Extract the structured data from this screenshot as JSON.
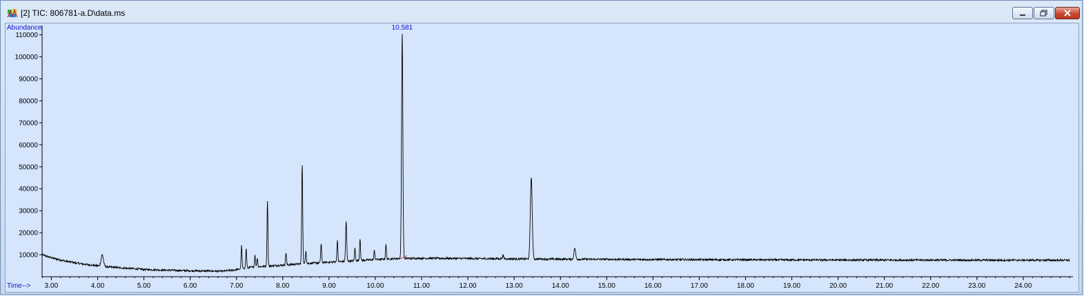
{
  "window": {
    "title": "[2] TIC: 806781-a.D\\data.ms"
  },
  "colors": {
    "axis_label": "#1010d0",
    "trace": "#000000",
    "peak_label": "#1010d0",
    "baseline_mark": "#d03030",
    "plot_background": "#d5e5fb"
  },
  "chart_data": {
    "type": "line",
    "ylabel": "Abundance",
    "xlabel": "Time-->",
    "xlim": [
      2.8,
      25.0
    ],
    "ylim": [
      0,
      113000
    ],
    "x_ticks": [
      "3.00",
      "4.00",
      "5.00",
      "6.00",
      "7.00",
      "8.00",
      "9.00",
      "10.00",
      "11.00",
      "12.00",
      "13.00",
      "14.00",
      "15.00",
      "16.00",
      "17.00",
      "18.00",
      "19.00",
      "20.00",
      "21.00",
      "22.00",
      "23.00",
      "24.00"
    ],
    "y_ticks": [
      "10000",
      "20000",
      "30000",
      "40000",
      "50000",
      "60000",
      "70000",
      "80000",
      "90000",
      "100000",
      "110000"
    ],
    "grid": false,
    "peak_annotation": {
      "x": 10.581,
      "label": "10.581"
    },
    "baseline": [
      [
        2.8,
        10000
      ],
      [
        3.0,
        8600
      ],
      [
        3.3,
        7100
      ],
      [
        3.7,
        5700
      ],
      [
        4.2,
        4500
      ],
      [
        5.0,
        3300
      ],
      [
        6.0,
        2700
      ],
      [
        6.7,
        2500
      ],
      [
        7.0,
        3200
      ],
      [
        7.3,
        4300
      ],
      [
        7.8,
        5000
      ],
      [
        8.5,
        6000
      ],
      [
        9.0,
        6600
      ],
      [
        9.5,
        7200
      ],
      [
        10.0,
        7800
      ],
      [
        10.5,
        8300
      ],
      [
        11.0,
        8400
      ],
      [
        12.0,
        8300
      ],
      [
        13.0,
        8100
      ],
      [
        14.0,
        8000
      ],
      [
        16.0,
        7800
      ],
      [
        20.0,
        7600
      ],
      [
        25.0,
        7500
      ]
    ],
    "peaks": [
      {
        "rt": 4.1,
        "height": 10000,
        "width": 0.025
      },
      {
        "rt": 7.11,
        "height": 14000,
        "width": 0.01
      },
      {
        "rt": 7.21,
        "height": 13000,
        "width": 0.01
      },
      {
        "rt": 7.4,
        "height": 10000,
        "width": 0.01
      },
      {
        "rt": 7.45,
        "height": 8500,
        "width": 0.01
      },
      {
        "rt": 7.67,
        "height": 35000,
        "width": 0.01
      },
      {
        "rt": 8.07,
        "height": 11000,
        "width": 0.01
      },
      {
        "rt": 8.42,
        "height": 51500,
        "width": 0.011
      },
      {
        "rt": 8.5,
        "height": 12000,
        "width": 0.01
      },
      {
        "rt": 8.83,
        "height": 15000,
        "width": 0.01
      },
      {
        "rt": 9.18,
        "height": 16500,
        "width": 0.01
      },
      {
        "rt": 9.37,
        "height": 25000,
        "width": 0.012
      },
      {
        "rt": 9.56,
        "height": 13000,
        "width": 0.01
      },
      {
        "rt": 9.67,
        "height": 17500,
        "width": 0.01
      },
      {
        "rt": 9.98,
        "height": 12000,
        "width": 0.01
      },
      {
        "rt": 10.23,
        "height": 14500,
        "width": 0.01
      },
      {
        "rt": 10.581,
        "height": 111500,
        "width": 0.014
      },
      {
        "rt": 12.76,
        "height": 9500,
        "width": 0.015
      },
      {
        "rt": 13.37,
        "height": 45500,
        "width": 0.02
      },
      {
        "rt": 14.31,
        "height": 13000,
        "width": 0.018
      }
    ]
  }
}
